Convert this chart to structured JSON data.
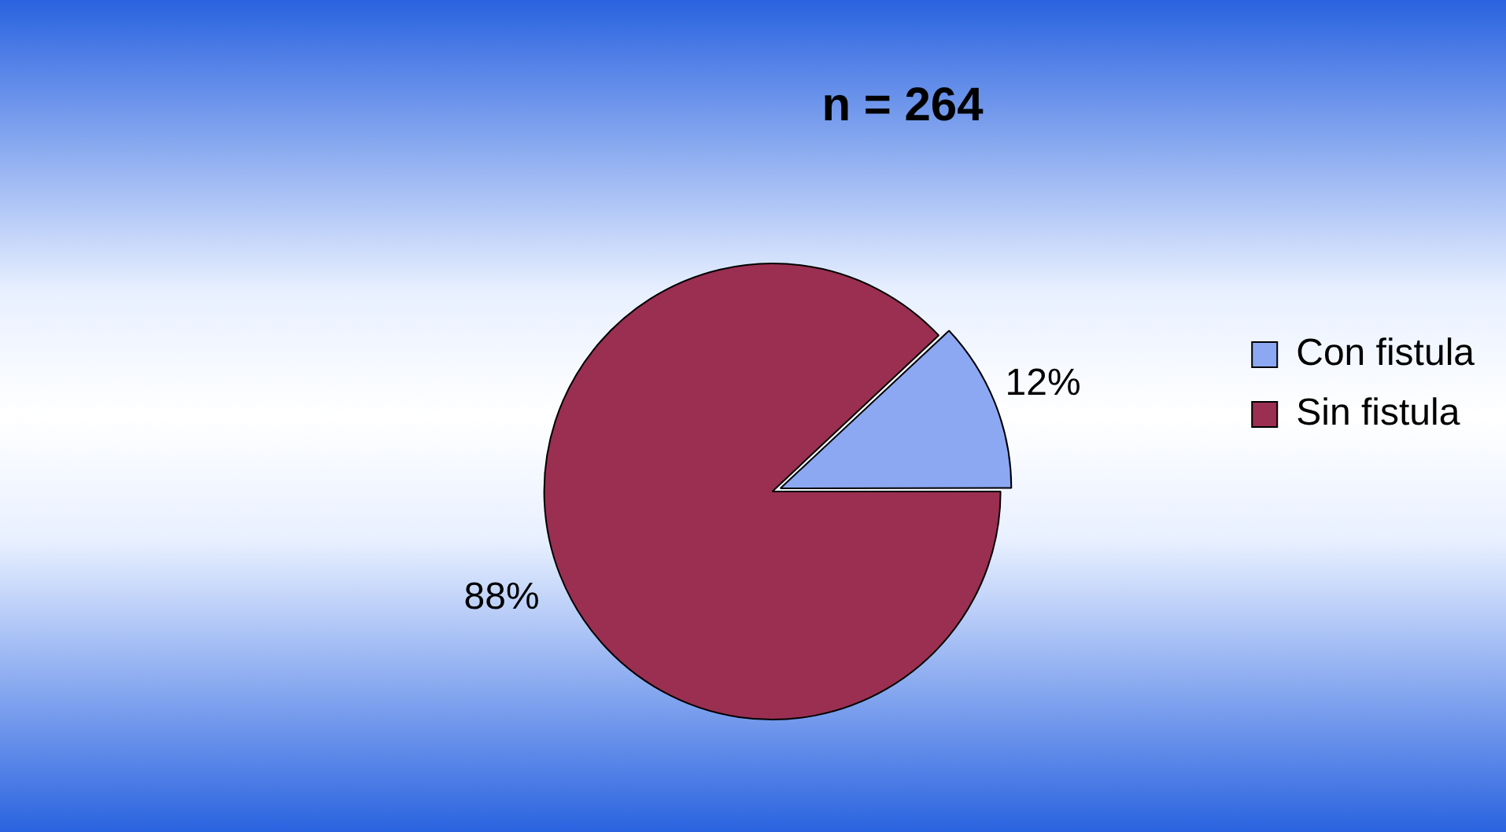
{
  "chart_data": {
    "type": "pie",
    "title": "n = 264",
    "categories": [
      "Con fistula",
      "Sin fistula"
    ],
    "values": [
      12,
      88
    ],
    "colors": [
      "#8da8f2",
      "#9a2f52"
    ],
    "value_labels": [
      "12%",
      "88%"
    ],
    "legend": "right"
  }
}
